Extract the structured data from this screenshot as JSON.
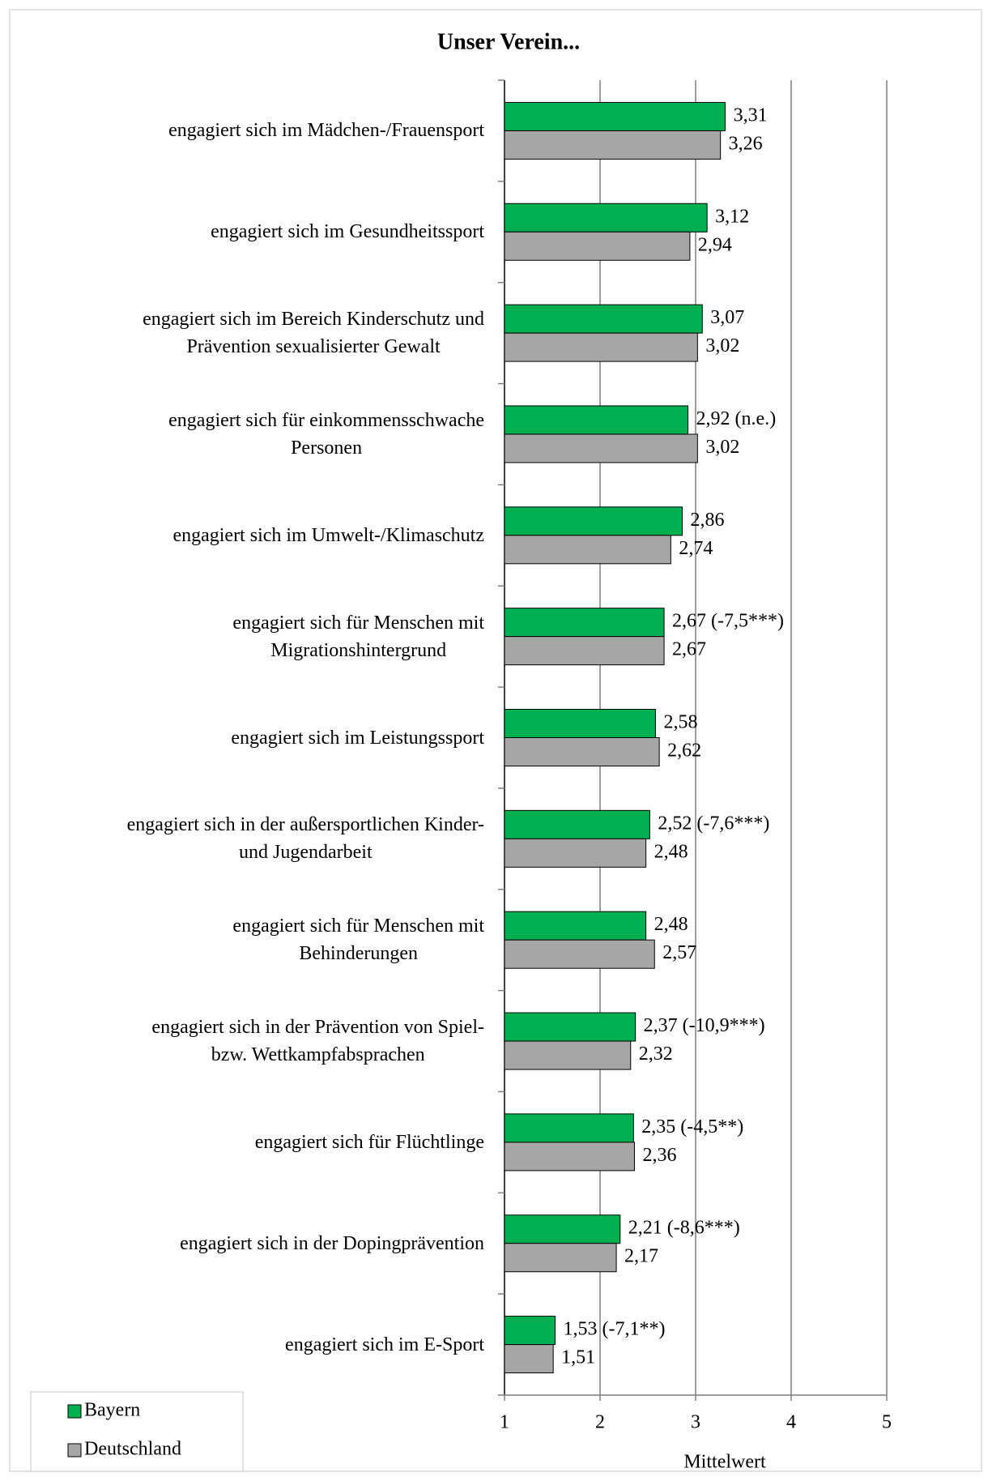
{
  "chart_data": {
    "type": "bar",
    "orientation": "horizontal",
    "title": "Unser Verein...",
    "xlabel": "Mittelwert",
    "categories": [
      "engagiert sich im Mädchen-/Frauensport",
      "engagiert sich im Gesundheitssport",
      "engagiert sich im Bereich Kinderschutz und\nPrävention sexualisierter Gewalt",
      "engagiert sich für einkommensschwache\nPersonen",
      "engagiert sich im Umwelt-/Klimaschutz",
      "engagiert sich für Menschen mit\nMigrationshintergrund",
      "engagiert sich im Leistungssport",
      "engagiert sich in der außersportlichen Kinder-\nund Jugendarbeit",
      "engagiert sich für Menschen mit\nBehinderungen",
      "engagiert sich in der Prävention von Spiel-\nbzw. Wettkampfabsprachen",
      "engagiert sich für Flüchtlinge",
      "engagiert sich in der Dopingprävention",
      "engagiert sich im E-Sport"
    ],
    "series": [
      {
        "name": "Bayern",
        "color": "#00b050",
        "values": [
          3.31,
          3.12,
          3.07,
          2.92,
          2.86,
          2.67,
          2.58,
          2.52,
          2.48,
          2.37,
          2.35,
          2.21,
          1.53
        ],
        "value_labels": [
          "3,31",
          "3,12",
          "3,07",
          "2,92 (n.e.)",
          "2,86",
          "2,67 (-7,5***)",
          "2,58",
          "2,52 (-7,6***)",
          "2,48",
          "2,37  (-10,9***)",
          "2,35 (-4,5**)",
          "2,21 (-8,6***)",
          "1,53 (-7,1**)"
        ]
      },
      {
        "name": "Deutschland",
        "color": "#a6a6a6",
        "values": [
          3.26,
          2.94,
          3.02,
          3.02,
          2.74,
          2.67,
          2.62,
          2.48,
          2.57,
          2.32,
          2.36,
          2.17,
          1.51
        ],
        "value_labels": [
          "3,26",
          "2,94",
          "3,02",
          "3,02",
          "2,74",
          "2,67",
          "2,62",
          "2,48",
          "2,57",
          "2,32",
          "2,36",
          "2,17",
          "1,51"
        ]
      }
    ],
    "xlim": [
      1,
      5
    ],
    "xticks": [
      1,
      2,
      3,
      4,
      5
    ],
    "grid": true,
    "legend": "bottom-left"
  }
}
